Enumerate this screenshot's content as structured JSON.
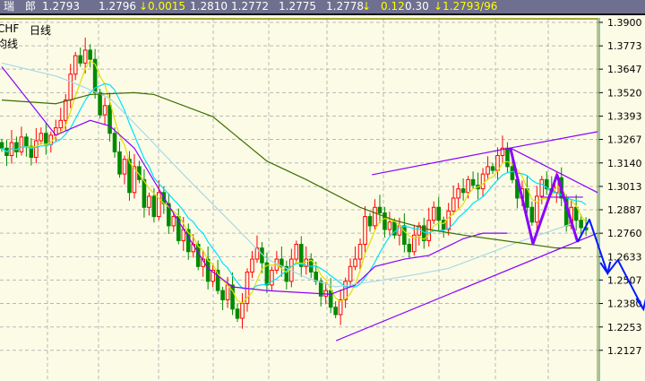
{
  "quote_bar": {
    "name": "瑞　郎",
    "values": [
      "1.2793",
      "1.2796",
      "↓0.0015",
      "1.2810",
      "1.2772",
      "1.2775",
      "1.2778",
      "↓",
      "0.12",
      "0.30",
      "↓1.2793/96"
    ]
  },
  "labels": {
    "symbol": "CHF",
    "period": "日线",
    "indicator": "均线"
  },
  "colors": {
    "up": "#ff0000",
    "down": "#008a00",
    "background": "#fcfce6",
    "grid": "#b8b8b8",
    "trendline": "#8a00ff",
    "forecast": "#0018ff"
  },
  "chart_data": {
    "type": "candlestick",
    "title": "",
    "ylim": [
      1.1961,
      1.3924
    ],
    "grid": true,
    "yticks": [
      "1.3900",
      "1.3773",
      "1.3647",
      "1.3520",
      "1.3393",
      "1.3267",
      "1.3140",
      "1.3013",
      "1.2887",
      "1.2760",
      "1.2633",
      "1.2507",
      "1.2380",
      "1.2253",
      "1.2127"
    ],
    "close": [
      1.322,
      1.318,
      1.325,
      1.32,
      1.328,
      1.323,
      1.317,
      1.326,
      1.33,
      1.324,
      1.329,
      1.333,
      1.337,
      1.348,
      1.362,
      1.372,
      1.368,
      1.375,
      1.37,
      1.352,
      1.34,
      1.345,
      1.33,
      1.32,
      1.308,
      1.316,
      1.298,
      1.312,
      1.305,
      1.29,
      1.296,
      1.285,
      1.298,
      1.292,
      1.28,
      1.285,
      1.272,
      1.278,
      1.266,
      1.27,
      1.258,
      1.262,
      1.25,
      1.256,
      1.245,
      1.24,
      1.248,
      1.235,
      1.23,
      1.238,
      1.255,
      1.262,
      1.268,
      1.26,
      1.248,
      1.256,
      1.262,
      1.258,
      1.25,
      1.262,
      1.27,
      1.258,
      1.262,
      1.255,
      1.25,
      1.242,
      1.245,
      1.236,
      1.232,
      1.24,
      1.25,
      1.258,
      1.262,
      1.27,
      1.285,
      1.28,
      1.29,
      1.287,
      1.278,
      1.282,
      1.275,
      1.28,
      1.27,
      1.266,
      1.275,
      1.28,
      1.272,
      1.283,
      1.29,
      1.283,
      1.278,
      1.288,
      1.295,
      1.3,
      1.298,
      1.305,
      1.302,
      1.3,
      1.308,
      1.312,
      1.31,
      1.318,
      1.322,
      1.312,
      1.305,
      1.295,
      1.3,
      1.29,
      1.282,
      1.296,
      1.305,
      1.3,
      1.298,
      1.306,
      1.295,
      1.28,
      1.29,
      1.283,
      1.279,
      1.2778
    ],
    "moving_averages": [
      {
        "color": "#e0e000",
        "period": 5
      },
      {
        "color": "#00e0ff",
        "period": 10
      },
      {
        "color": "#8a00ff",
        "points": [
          [
            0,
            1.366
          ],
          [
            11,
            1.329
          ],
          [
            18,
            1.337
          ],
          [
            22,
            1.334
          ],
          [
            27,
            1.322
          ],
          [
            34,
            1.291
          ],
          [
            42,
            1.257
          ],
          [
            47,
            1.247
          ],
          [
            54,
            1.245
          ],
          [
            67,
            1.243
          ],
          [
            72,
            1.248
          ],
          [
            76,
            1.258
          ],
          [
            82,
            1.262
          ],
          [
            87,
            1.264
          ],
          [
            94,
            1.273
          ],
          [
            98,
            1.276
          ],
          [
            103,
            1.276
          ]
        ]
      },
      {
        "color": "#a8d8e8",
        "points": [
          [
            0,
            1.368
          ],
          [
            11,
            1.361
          ],
          [
            14,
            1.358
          ],
          [
            22,
            1.349
          ],
          [
            29,
            1.33
          ],
          [
            38,
            1.305
          ],
          [
            47,
            1.281
          ],
          [
            54,
            1.262
          ],
          [
            62,
            1.252
          ],
          [
            68,
            1.247
          ],
          [
            76,
            1.25
          ],
          [
            85,
            1.254
          ],
          [
            91,
            1.257
          ],
          [
            98,
            1.264
          ],
          [
            105,
            1.271
          ],
          [
            116,
            1.281
          ]
        ]
      },
      {
        "color": "#3c6e00",
        "points": [
          [
            0,
            1.348
          ],
          [
            11,
            1.346
          ],
          [
            18,
            1.351
          ],
          [
            27,
            1.352
          ],
          [
            31,
            1.351
          ],
          [
            43,
            1.339
          ],
          [
            54,
            1.315
          ],
          [
            62,
            1.305
          ],
          [
            73,
            1.29
          ],
          [
            80,
            1.283
          ],
          [
            87,
            1.278
          ],
          [
            94,
            1.275
          ],
          [
            105,
            1.271
          ],
          [
            113,
            1.268
          ],
          [
            118,
            1.268
          ]
        ]
      }
    ],
    "trendlines": [
      {
        "color": "#8a00ff",
        "width": 1.2,
        "points": [
          [
            75.4,
            1.3076
          ],
          [
            103.6,
            1.3221
          ],
          [
            121.4,
            1.3309
          ]
        ]
      },
      {
        "color": "#8a00ff",
        "width": 1.2,
        "points": [
          [
            68.1,
            1.2179
          ],
          [
            121.4,
            1.2761
          ]
        ]
      },
      {
        "color": "#8a00ff",
        "width": 1.2,
        "points": [
          [
            103.6,
            1.3221
          ],
          [
            121.4,
            1.2979
          ]
        ]
      },
      {
        "color": "#8a00ff",
        "width": 1.2,
        "points": [
          [
            109.7,
            1.2955
          ],
          [
            118.4,
            1.2955
          ]
        ]
      },
      {
        "color": "#8a00ff",
        "width": 3,
        "points": [
          [
            103.6,
            1.3221
          ],
          [
            108.2,
            1.2703
          ],
          [
            113.1,
            1.3076
          ],
          [
            117.3,
            1.2712
          ]
        ]
      },
      {
        "color": "#0018ff",
        "width": 2,
        "points": [
          [
            117.3,
            1.2712
          ],
          [
            119.7,
            1.2834
          ],
          [
            123.4,
            1.2543
          ],
          [
            125.5,
            1.2615
          ],
          [
            130.7,
            1.2349
          ]
        ]
      }
    ]
  }
}
